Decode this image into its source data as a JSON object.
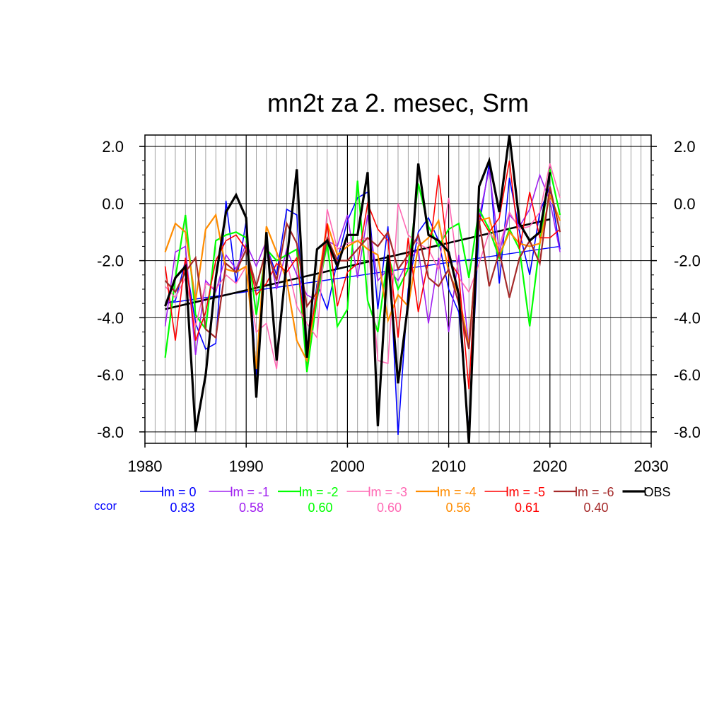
{
  "chart_data": {
    "type": "line",
    "title": "mn2t za 2. mesec, Srm",
    "xlim": [
      1980,
      2030
    ],
    "ylim": [
      -8.4,
      2.4
    ],
    "x_ticks": [
      1980,
      1990,
      2000,
      2010,
      2020,
      2030
    ],
    "x_tick_labels": [
      "1980",
      "1990",
      "2000",
      "2010",
      "2020",
      "2030"
    ],
    "y_ticks": [
      2.0,
      0.0,
      -2.0,
      -4.0,
      -6.0,
      -8.0
    ],
    "y_tick_labels": [
      "2.0",
      "0.0",
      "-2.0",
      "-4.0",
      "-6.0",
      "-8.0"
    ],
    "grid": true,
    "legend_position": "bottom",
    "ccor_label": "ccor",
    "ccor_color": "#0000ff",
    "x": [
      1982,
      1983,
      1984,
      1985,
      1986,
      1987,
      1988,
      1989,
      1990,
      1991,
      1992,
      1993,
      1994,
      1995,
      1996,
      1997,
      1998,
      1999,
      2000,
      2001,
      2002,
      2003,
      2004,
      2005,
      2006,
      2007,
      2008,
      2009,
      2010,
      2011,
      2012,
      2013,
      2014,
      2015,
      2016,
      2017,
      2018,
      2019,
      2020,
      2021
    ],
    "series": [
      {
        "name": "lm = 0",
        "color": "#0000ff",
        "ccor": "0.83",
        "width": 1.6,
        "values": [
          -3.5,
          -3.4,
          -2.0,
          -4.2,
          -5.1,
          -4.9,
          0.1,
          -2.8,
          -0.6,
          -6.0,
          -1.5,
          -2.5,
          -0.2,
          -0.4,
          -5.6,
          -2.8,
          -3.7,
          -2.0,
          -0.6,
          0.2,
          0.4,
          -3.7,
          -0.8,
          -8.1,
          -3.0,
          -1.0,
          -0.5,
          -1.3,
          -3.0,
          -3.8,
          -8.0,
          -0.8,
          1.4,
          -2.8,
          0.9,
          -1.0,
          -2.5,
          -0.3,
          0.6,
          -1.6
        ]
      },
      {
        "name": "lm = -1",
        "color": "#a020f0",
        "ccor": "0.58",
        "width": 1.6,
        "values": [
          -4.3,
          -1.7,
          -1.5,
          -5.3,
          -2.7,
          -3.1,
          -1.8,
          -2.3,
          -1.4,
          -2.2,
          -1.3,
          -3.0,
          -1.6,
          -2.5,
          -3.2,
          -3.4,
          -1.3,
          -1.5,
          -0.4,
          -2.6,
          -0.4,
          -2.7,
          -2.3,
          -2.7,
          -2.0,
          -1.6,
          -4.2,
          -1.9,
          -4.5,
          -1.8,
          -5.0,
          -0.5,
          1.2,
          -1.7,
          -0.4,
          -0.8,
          -0.2,
          1.0,
          0.1,
          -1.7
        ]
      },
      {
        "name": "lm = -2",
        "color": "#00ff00",
        "ccor": "0.60",
        "width": 2.2,
        "values": [
          -5.4,
          -2.6,
          -0.4,
          -3.9,
          -4.4,
          -1.3,
          -1.1,
          -1.0,
          -1.2,
          -3.9,
          -1.6,
          -2.0,
          -1.8,
          -1.6,
          -5.9,
          -3.3,
          -1.4,
          -4.3,
          -3.7,
          0.8,
          -3.4,
          -4.5,
          -1.8,
          -3.0,
          -2.3,
          0.7,
          -0.8,
          -1.5,
          -0.9,
          -0.7,
          -2.6,
          -0.2,
          -0.9,
          -1.9,
          -0.9,
          -1.6,
          -4.3,
          -1.4,
          1.2,
          -0.4
        ]
      },
      {
        "name": "lm = -3",
        "color": "#ff69b4",
        "ccor": "0.60",
        "width": 1.6,
        "values": [
          -2.9,
          -3.3,
          -2.6,
          -4.3,
          -2.8,
          -3.0,
          -2.5,
          -2.8,
          -2.2,
          -4.5,
          -4.2,
          -5.8,
          -2.0,
          -3.6,
          -4.2,
          -4.7,
          -0.2,
          -1.6,
          -1.4,
          -1.3,
          -1.2,
          -5.5,
          -5.6,
          0.0,
          -1.1,
          -1.4,
          -1.6,
          -2.3,
          0.2,
          -2.6,
          -3.1,
          -2.1,
          -1.0,
          -1.5,
          -0.3,
          -0.9,
          -0.8,
          -0.3,
          1.4,
          0.2
        ]
      },
      {
        "name": "lm = -4",
        "color": "#ff8c00",
        "ccor": "0.56",
        "width": 2.2,
        "values": [
          -1.7,
          -0.7,
          -1.0,
          -3.4,
          -0.9,
          -0.4,
          -2.3,
          -2.4,
          -2.2,
          -5.8,
          -0.8,
          -1.7,
          -2.7,
          -4.8,
          -5.5,
          -3.0,
          -0.7,
          -1.8,
          -1.5,
          -1.3,
          -1.6,
          -1.8,
          -4.1,
          -3.2,
          -3.6,
          -1.5,
          -1.2,
          -0.6,
          -2.4,
          -3.2,
          -5.0,
          -0.6,
          -0.5,
          -1.8,
          -1.0,
          -1.4,
          -1.5,
          -1.4,
          0.3,
          -0.6
        ]
      },
      {
        "name": "lm = -5",
        "color": "#ff0000",
        "ccor": "0.61",
        "width": 1.6,
        "values": [
          -2.2,
          -4.8,
          -1.9,
          -4.8,
          -3.8,
          -2.0,
          -1.3,
          -1.1,
          -1.6,
          -3.2,
          -2.8,
          -2.1,
          -2.4,
          -1.9,
          -5.0,
          -3.2,
          -0.7,
          -3.6,
          -2.4,
          -2.1,
          0.0,
          -0.9,
          -1.3,
          -4.7,
          -1.2,
          -3.8,
          -2.0,
          1.0,
          -2.0,
          -2.5,
          -6.5,
          -0.4,
          -1.0,
          -0.5,
          1.5,
          -1.6,
          0.4,
          -1.2,
          -1.2,
          -0.9
        ]
      },
      {
        "name": "lm = -6",
        "color": "#a52a2a",
        "ccor": "0.40",
        "width": 2.2,
        "values": [
          -2.7,
          -3.1,
          -2.4,
          -1.9,
          -4.4,
          -4.7,
          -2.1,
          -2.4,
          -1.6,
          -2.9,
          -1.6,
          -2.7,
          -0.7,
          -1.4,
          -3.6,
          -3.1,
          -1.2,
          -2.0,
          -2.0,
          -1.6,
          -1.2,
          -1.5,
          -1.0,
          -2.3,
          -1.8,
          -1.1,
          -2.6,
          -2.9,
          -2.3,
          -3.5,
          -5.1,
          -0.6,
          -2.9,
          -1.7,
          -3.3,
          -1.9,
          -1.3,
          -2.1,
          0.6,
          -1.0
        ]
      },
      {
        "name": "OBS",
        "color": "#000000",
        "width": 3.2,
        "values": [
          -3.6,
          -2.6,
          -2.2,
          -8.0,
          -6.0,
          -2.6,
          -0.3,
          0.3,
          -0.5,
          -6.8,
          -1.0,
          -5.5,
          -2.0,
          1.2,
          -5.4,
          -1.6,
          -1.3,
          -2.2,
          -1.1,
          -1.1,
          1.1,
          -7.8,
          -1.8,
          -6.3,
          -3.5,
          1.4,
          -1.1,
          -1.3,
          -1.7,
          -3.2,
          -8.4,
          0.6,
          1.5,
          -0.3,
          2.4,
          -0.7,
          -1.3,
          -1.0,
          1.1,
          null
        ]
      }
    ],
    "trend_lines": [
      {
        "name": "lm = 0 trend",
        "color": "#0000ff",
        "x": [
          1982,
          2021
        ],
        "y": [
          -3.5,
          -1.5
        ],
        "width": 1.4
      },
      {
        "name": "OBS trend",
        "color": "#000000",
        "x": [
          1982,
          2020
        ],
        "y": [
          -3.7,
          -0.55
        ],
        "width": 2.6
      }
    ]
  }
}
